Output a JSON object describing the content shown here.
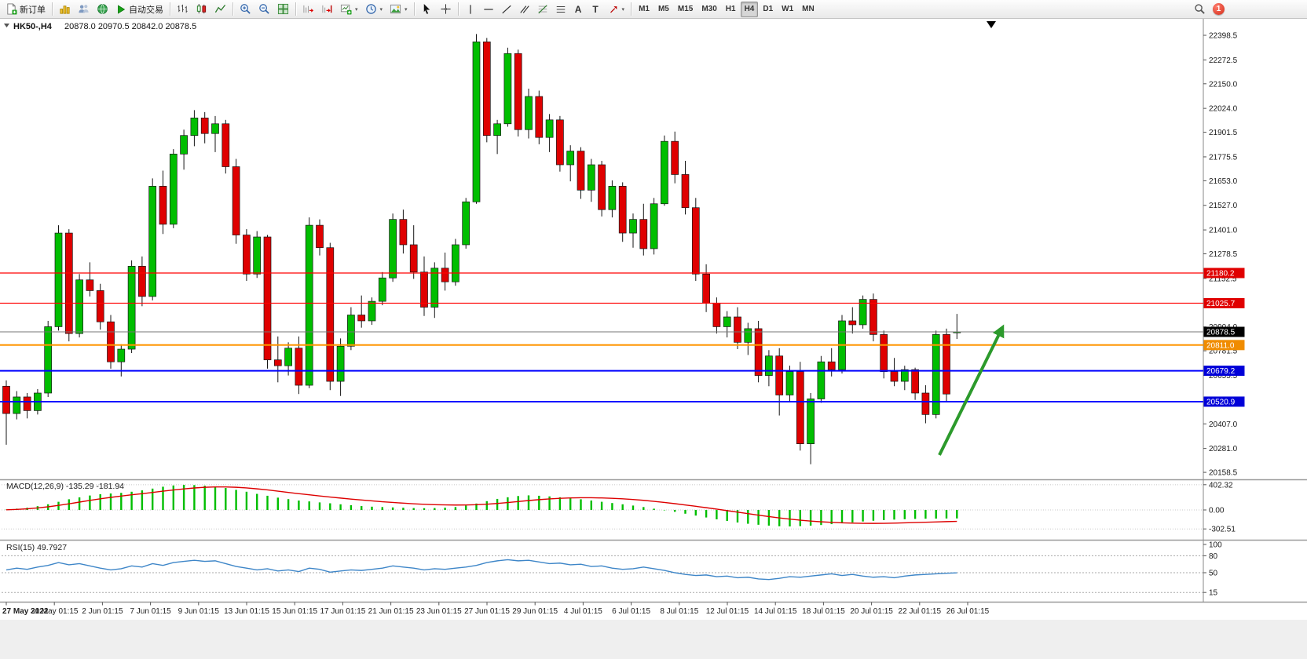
{
  "toolbar": {
    "new_order_label": "新订单",
    "autotrading_label": "自动交易",
    "timeframes": [
      "M1",
      "M5",
      "M15",
      "M30",
      "H1",
      "H4",
      "D1",
      "W1",
      "MN"
    ],
    "active_timeframe": "H4",
    "notification_count": "1"
  },
  "chart": {
    "symbol": "HK50-,H4",
    "ohlc_text": "20878.0 20970.5 20842.0 20878.5",
    "colors": {
      "up": "#00BE00",
      "down": "#DF0000",
      "outline": "#151515",
      "macd_histogram": "#00BE00",
      "macd_signal": "#DD0000",
      "rsi_line": "#3E86C8",
      "arrow": "#2C9A2C"
    },
    "y_ticks": [
      "22398.5",
      "22272.5",
      "22150.0",
      "22024.0",
      "21901.5",
      "21775.5",
      "21653.0",
      "21527.0",
      "21401.0",
      "21278.5",
      "21152.5",
      "20904.0",
      "20781.5",
      "20655.5",
      "20407.0",
      "20281.0",
      "20158.5"
    ],
    "hlines": [
      {
        "price": 21180.2,
        "label": "21180.2",
        "color": "#FF0000",
        "label_bg": "#E00000",
        "width": 1.2
      },
      {
        "price": 21025.7,
        "label": "21025.7",
        "color": "#FF0000",
        "label_bg": "#E00000",
        "width": 1.2
      },
      {
        "price": 20878.5,
        "label": "20878.5",
        "color": "#777777",
        "label_bg": "#000000",
        "width": 1
      },
      {
        "price": 20811.0,
        "label": "20811.0",
        "color": "#FF9500",
        "label_bg": "#F08C00",
        "width": 2
      },
      {
        "price": 20679.2,
        "label": "20679.2",
        "color": "#0000FF",
        "label_bg": "#0000D8",
        "width": 2
      },
      {
        "price": 20520.9,
        "label": "20520.9",
        "color": "#0000FF",
        "label_bg": "#0000D8",
        "width": 2
      }
    ]
  },
  "chart_data": {
    "type": "candlestick",
    "title": "HK50-,H4",
    "current_bar": {
      "open": 20878.0,
      "high": 20970.5,
      "low": 20842.0,
      "close": 20878.5
    },
    "price_axis_range": [
      20158.5,
      22398.5
    ],
    "candles": [
      [
        20600,
        20630,
        20300,
        20460
      ],
      [
        20460,
        20575,
        20430,
        20545
      ],
      [
        20545,
        20565,
        20435,
        20475
      ],
      [
        20475,
        20585,
        20455,
        20565
      ],
      [
        20565,
        20935,
        20545,
        20905
      ],
      [
        20905,
        21425,
        20885,
        21385
      ],
      [
        21385,
        21405,
        20830,
        20870
      ],
      [
        20870,
        21175,
        20850,
        21145
      ],
      [
        21145,
        21235,
        21060,
        21090
      ],
      [
        21090,
        21125,
        20890,
        20930
      ],
      [
        20930,
        20965,
        20690,
        20725
      ],
      [
        20725,
        20815,
        20650,
        20790
      ],
      [
        20790,
        21245,
        20770,
        21215
      ],
      [
        21215,
        21265,
        21010,
        21060
      ],
      [
        21060,
        21665,
        21040,
        21625
      ],
      [
        21625,
        21705,
        21380,
        21430
      ],
      [
        21430,
        21815,
        21410,
        21790
      ],
      [
        21790,
        21915,
        21710,
        21885
      ],
      [
        21885,
        22015,
        21830,
        21975
      ],
      [
        21975,
        22005,
        21845,
        21895
      ],
      [
        21895,
        21985,
        21800,
        21945
      ],
      [
        21945,
        21965,
        21690,
        21725
      ],
      [
        21725,
        21765,
        21330,
        21375
      ],
      [
        21375,
        21405,
        21140,
        21175
      ],
      [
        21175,
        21395,
        21155,
        21365
      ],
      [
        21365,
        21375,
        20690,
        20735
      ],
      [
        20735,
        20855,
        20620,
        20705
      ],
      [
        20705,
        20825,
        20655,
        20795
      ],
      [
        20795,
        20855,
        20560,
        20605
      ],
      [
        20605,
        21465,
        20590,
        21425
      ],
      [
        21425,
        21455,
        21270,
        21310
      ],
      [
        21310,
        21335,
        20580,
        20625
      ],
      [
        20625,
        20845,
        20550,
        20805
      ],
      [
        20805,
        21005,
        20785,
        20965
      ],
      [
        20965,
        21065,
        20900,
        20935
      ],
      [
        20935,
        21055,
        20915,
        21035
      ],
      [
        21035,
        21185,
        21015,
        21155
      ],
      [
        21155,
        21485,
        21135,
        21455
      ],
      [
        21455,
        21505,
        21280,
        21325
      ],
      [
        21325,
        21425,
        21150,
        21185
      ],
      [
        21185,
        21265,
        20960,
        21005
      ],
      [
        21005,
        21235,
        20950,
        21205
      ],
      [
        21205,
        21285,
        21090,
        21135
      ],
      [
        21135,
        21355,
        21115,
        21325
      ],
      [
        21325,
        21565,
        21305,
        21545
      ],
      [
        21545,
        22405,
        21535,
        22365
      ],
      [
        22365,
        22385,
        21850,
        21885
      ],
      [
        21885,
        21965,
        21790,
        21945
      ],
      [
        21945,
        22335,
        21930,
        22305
      ],
      [
        22305,
        22325,
        21880,
        21915
      ],
      [
        21915,
        22125,
        21870,
        22085
      ],
      [
        22085,
        22115,
        21840,
        21875
      ],
      [
        21875,
        21995,
        21800,
        21965
      ],
      [
        21965,
        21985,
        21700,
        21735
      ],
      [
        21735,
        21835,
        21650,
        21805
      ],
      [
        21805,
        21825,
        21560,
        21605
      ],
      [
        21605,
        21765,
        21545,
        21735
      ],
      [
        21735,
        21755,
        21470,
        21505
      ],
      [
        21505,
        21655,
        21465,
        21625
      ],
      [
        21625,
        21645,
        21340,
        21385
      ],
      [
        21385,
        21485,
        21310,
        21455
      ],
      [
        21455,
        21535,
        21270,
        21305
      ],
      [
        21305,
        21565,
        21275,
        21535
      ],
      [
        21535,
        21885,
        21525,
        21855
      ],
      [
        21855,
        21905,
        21640,
        21685
      ],
      [
        21685,
        21755,
        21480,
        21515
      ],
      [
        21515,
        21565,
        21140,
        21175
      ],
      [
        21175,
        21225,
        20980,
        21025
      ],
      [
        21025,
        21055,
        20870,
        20905
      ],
      [
        20905,
        20985,
        20850,
        20955
      ],
      [
        20955,
        21005,
        20790,
        20825
      ],
      [
        20825,
        20925,
        20760,
        20895
      ],
      [
        20895,
        20935,
        20620,
        20655
      ],
      [
        20655,
        20785,
        20600,
        20755
      ],
      [
        20755,
        20795,
        20450,
        20555
      ],
      [
        20555,
        20705,
        20520,
        20675
      ],
      [
        20675,
        20725,
        20270,
        20305
      ],
      [
        20305,
        20565,
        20200,
        20535
      ],
      [
        20535,
        20755,
        20515,
        20725
      ],
      [
        20725,
        20795,
        20650,
        20685
      ],
      [
        20685,
        20965,
        20665,
        20935
      ],
      [
        20935,
        21005,
        20870,
        20915
      ],
      [
        20915,
        21065,
        20895,
        21045
      ],
      [
        21045,
        21075,
        20830,
        20865
      ],
      [
        20865,
        20885,
        20640,
        20675
      ],
      [
        20675,
        20745,
        20600,
        20625
      ],
      [
        20625,
        20705,
        20580,
        20685
      ],
      [
        20685,
        20695,
        20530,
        20565
      ],
      [
        20565,
        20605,
        20410,
        20455
      ],
      [
        20455,
        20885,
        20435,
        20865
      ],
      [
        20865,
        20895,
        20520,
        20560
      ],
      [
        20878.0,
        20970.5,
        20842.0,
        20878.5
      ]
    ],
    "x_labels": [
      "27 May 2022",
      "31 May 01:15",
      "2 Jun 01:15",
      "7 Jun 01:15",
      "9 Jun 01:15",
      "13 Jun 01:15",
      "15 Jun 01:15",
      "17 Jun 01:15",
      "21 Jun 01:15",
      "23 Jun 01:15",
      "27 Jun 01:15",
      "29 Jun 01:15",
      "4 Jul 01:15",
      "6 Jul 01:15",
      "8 Jul 01:15",
      "12 Jul 01:15",
      "14 Jul 01:15",
      "18 Jul 01:15",
      "20 Jul 01:15",
      "22 Jul 01:15",
      "26 Jul 01:15"
    ],
    "indicators": [
      {
        "name": "MACD",
        "params": [
          12,
          26,
          9
        ],
        "label": "MACD(12,26,9) -135.29 -181.94",
        "last_main": -135.29,
        "last_signal": -181.94,
        "ticks": [
          "402.32",
          "0.00",
          "-302.51"
        ],
        "histogram": [
          5,
          20,
          35,
          60,
          90,
          130,
          170,
          200,
          230,
          250,
          262,
          272,
          290,
          312,
          340,
          370,
          390,
          400,
          396,
          386,
          370,
          350,
          320,
          290,
          256,
          226,
          196,
          172,
          150,
          136,
          120,
          106,
          90,
          76,
          62,
          52,
          46,
          40,
          35,
          30,
          28,
          30,
          36,
          46,
          70,
          102,
          140,
          176,
          202,
          222,
          232,
          226,
          216,
          202,
          186,
          170,
          150,
          130,
          110,
          90,
          70,
          46,
          20,
          -6,
          -30,
          -60,
          -90,
          -120,
          -150,
          -176,
          -200,
          -220,
          -236,
          -250,
          -260,
          -263,
          -258,
          -250,
          -240,
          -226,
          -212,
          -198,
          -184,
          -172,
          -162,
          -154,
          -148,
          -143,
          -140,
          -138,
          -136,
          -135.29
        ],
        "signal": [
          2,
          8,
          18,
          32,
          50,
          72,
          98,
          125,
          152,
          178,
          200,
          221,
          241,
          259,
          279,
          299,
          318,
          335,
          350,
          361,
          366,
          366,
          361,
          351,
          336,
          319,
          299,
          279,
          259,
          241,
          223,
          206,
          189,
          173,
          158,
          144,
          131,
          119,
          108,
          98,
          90,
          84,
          80,
          78,
          79,
          83,
          91,
          103,
          118,
          134,
          150,
          164,
          176,
          185,
          191,
          194,
          194,
          191,
          185,
          177,
          166,
          153,
          137,
          119,
          100,
          79,
          58,
          36,
          13,
          -11,
          -35,
          -59,
          -83,
          -106,
          -127,
          -146,
          -163,
          -177,
          -189,
          -198,
          -205,
          -210,
          -213,
          -214,
          -213,
          -210,
          -206,
          -201,
          -196,
          -191,
          -186,
          -181.94
        ]
      },
      {
        "name": "RSI",
        "params": [
          15
        ],
        "label": "RSI(15) 49.7927",
        "last_value": 49.7927,
        "ticks": [
          "100",
          "80",
          "50",
          "15"
        ],
        "levels": [
          80,
          50,
          15
        ],
        "values": [
          55,
          58,
          56,
          60,
          63,
          68,
          64,
          66,
          62,
          58,
          55,
          57,
          62,
          60,
          66,
          63,
          68,
          70,
          72,
          70,
          71,
          66,
          61,
          58,
          55,
          57,
          53,
          55,
          52,
          58,
          56,
          51,
          53,
          55,
          54,
          56,
          58,
          62,
          60,
          58,
          55,
          57,
          56,
          58,
          60,
          63,
          68,
          71,
          73,
          71,
          72,
          69,
          66,
          67,
          64,
          65,
          61,
          62,
          58,
          56,
          57,
          60,
          57,
          54,
          50,
          47,
          45,
          46,
          43,
          44,
          41,
          42,
          39,
          38,
          40,
          43,
          42,
          44,
          46,
          48,
          45,
          47,
          44,
          42,
          43,
          41,
          44,
          46,
          47,
          48,
          49,
          49.79
        ]
      }
    ],
    "annotations": [
      {
        "type": "arrow",
        "color": "#2C9A2C",
        "direction": "up-right"
      }
    ]
  }
}
